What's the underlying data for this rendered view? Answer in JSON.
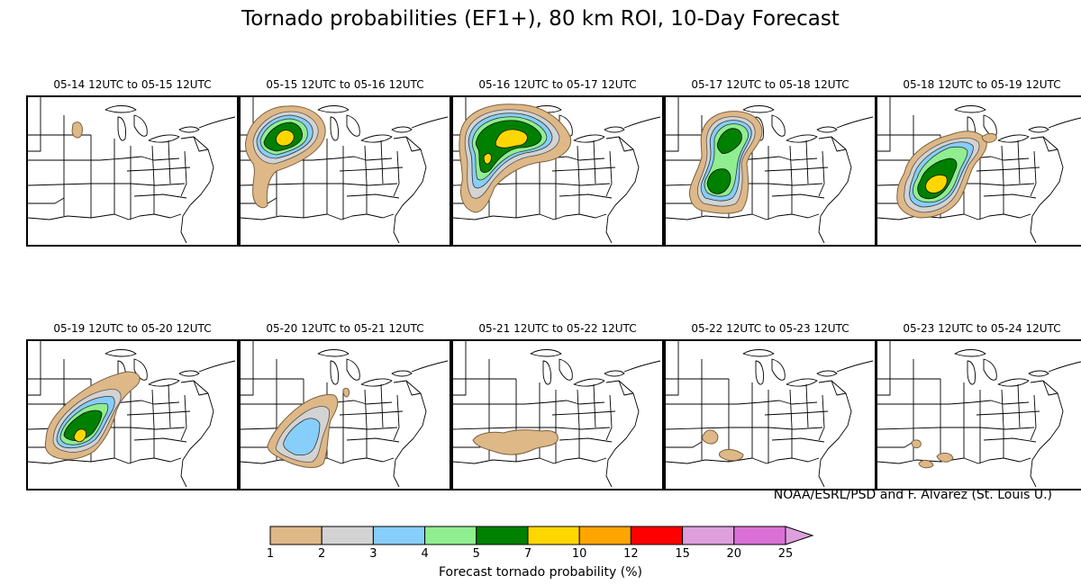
{
  "title": "Tornado probabilities (EF1+), 80 km ROI, 10-Day Forecast",
  "credit": "NOAA/ESRL/PSD and F. Alvarez (St. Louis U.)",
  "panels": [
    {
      "label": "05-14 12UTC to 05-15 12UTC"
    },
    {
      "label": "05-15 12UTC to 05-16 12UTC"
    },
    {
      "label": "05-16 12UTC to 05-17 12UTC"
    },
    {
      "label": "05-17 12UTC to 05-18 12UTC"
    },
    {
      "label": "05-18 12UTC to 05-19 12UTC"
    },
    {
      "label": "05-19 12UTC to 05-20 12UTC"
    },
    {
      "label": "05-20 12UTC to 05-21 12UTC"
    },
    {
      "label": "05-21 12UTC to 05-22 12UTC"
    },
    {
      "label": "05-22 12UTC to 05-23 12UTC"
    },
    {
      "label": "05-23 12UTC to 05-24 12UTC"
    }
  ],
  "colorbar": {
    "label": "Forecast tornado probability (%)",
    "ticks": [
      "1",
      "2",
      "3",
      "4",
      "5",
      "7",
      "10",
      "12",
      "15",
      "20",
      "25"
    ],
    "colors": [
      "#deb887",
      "#d3d3d3",
      "#87cefa",
      "#90ee90",
      "#008000",
      "#ffd700",
      "#ffa500",
      "#ff0000",
      "#dda0dd",
      "#da70d6"
    ],
    "extend_color": "#dda0dd"
  }
}
